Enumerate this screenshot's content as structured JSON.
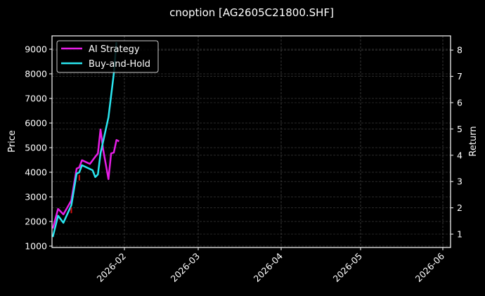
{
  "chart_data": {
    "type": "line",
    "title": "cnoption [AG2605C21800.SHF]",
    "xlabel": "",
    "ylabel": "Price",
    "y2label": "Return",
    "grid": true,
    "legend_position": "upper left",
    "x_tick_labels": [
      "2026-02",
      "2026-03",
      "2026-04",
      "2026-05",
      "2026-06"
    ],
    "y_ticks_left": [
      1000,
      2000,
      3000,
      4000,
      5000,
      6000,
      7000,
      8000,
      9000
    ],
    "y_ticks_right": [
      1,
      2,
      3,
      4,
      5,
      6,
      7,
      8
    ],
    "ylim_left": [
      1000,
      9500
    ],
    "ylim_right": [
      0.5,
      8.5
    ],
    "xlim": [
      "2026-01-05",
      "2026-06-05"
    ],
    "series": [
      {
        "name": "AI Strategy",
        "color": "#e61ee6",
        "axis": "right",
        "x": [
          "2026-01-05",
          "2026-01-07",
          "2026-01-09",
          "2026-01-12",
          "2026-01-14",
          "2026-01-15",
          "2026-01-16",
          "2026-01-19",
          "2026-01-21",
          "2026-01-22",
          "2026-01-23",
          "2026-01-24",
          "2026-01-26",
          "2026-01-27",
          "2026-01-28",
          "2026-01-29",
          "2026-01-30"
        ],
        "values": [
          1.21,
          1.96,
          1.75,
          2.28,
          3.49,
          3.54,
          3.81,
          3.67,
          3.94,
          4.07,
          4.98,
          4.21,
          3.09,
          4.07,
          4.1,
          4.58,
          4.53
        ]
      },
      {
        "name": "Buy-and-Hold",
        "color": "#2ae6f0",
        "axis": "right",
        "x": [
          "2026-01-05",
          "2026-01-07",
          "2026-01-09",
          "2026-01-12",
          "2026-01-14",
          "2026-01-15",
          "2026-01-16",
          "2026-01-20",
          "2026-01-21",
          "2026-01-22",
          "2026-01-23",
          "2026-01-26",
          "2026-01-28",
          "2026-01-29"
        ],
        "values": [
          0.89,
          1.7,
          1.43,
          2.1,
          3.3,
          3.35,
          3.62,
          3.43,
          3.17,
          3.27,
          4.07,
          5.44,
          7.1,
          8.3
        ]
      }
    ],
    "annotations": [
      {
        "type": "signal-marker",
        "color": "#d01010",
        "x": "2026-01-12",
        "price": 2450
      },
      {
        "type": "signal-marker",
        "color": "#d01010",
        "x": "2026-01-15",
        "price": 3780
      }
    ]
  }
}
